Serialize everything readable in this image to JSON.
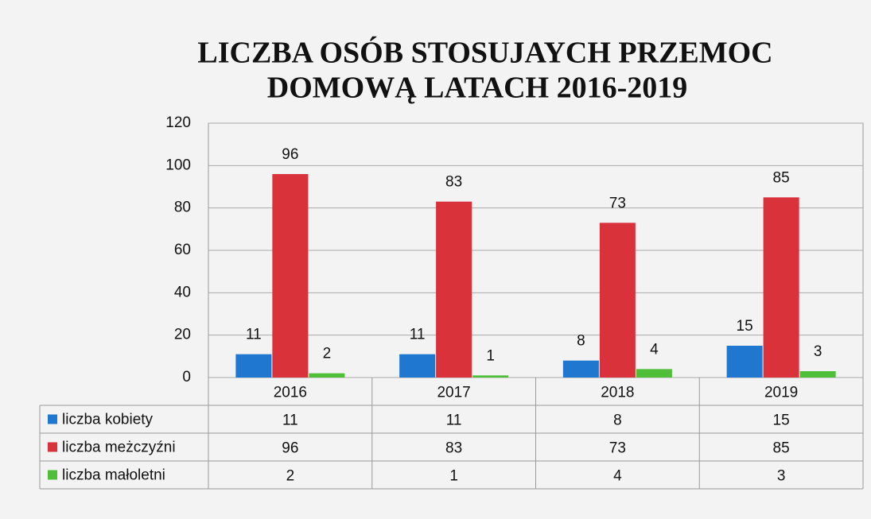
{
  "chart_data": {
    "type": "bar",
    "title": [
      "LICZBA OSÓB STOSUJAYCH PRZEMOC",
      "DOMOWĄ  LATACH 2016-2019"
    ],
    "categories": [
      "2016",
      "2017",
      "2018",
      "2019"
    ],
    "series": [
      {
        "name": "liczba kobiety",
        "color": "#1f77d0",
        "values": [
          11,
          11,
          8,
          15
        ]
      },
      {
        "name": "liczba meżczyźni",
        "color": "#d9323a",
        "values": [
          96,
          83,
          73,
          85
        ]
      },
      {
        "name": "liczba małoletni",
        "color": "#4fbf3a",
        "values": [
          2,
          1,
          4,
          3
        ]
      }
    ],
    "ylim": [
      0,
      120
    ],
    "yticks": [
      0,
      20,
      40,
      60,
      80,
      100,
      120
    ],
    "grid": true
  }
}
